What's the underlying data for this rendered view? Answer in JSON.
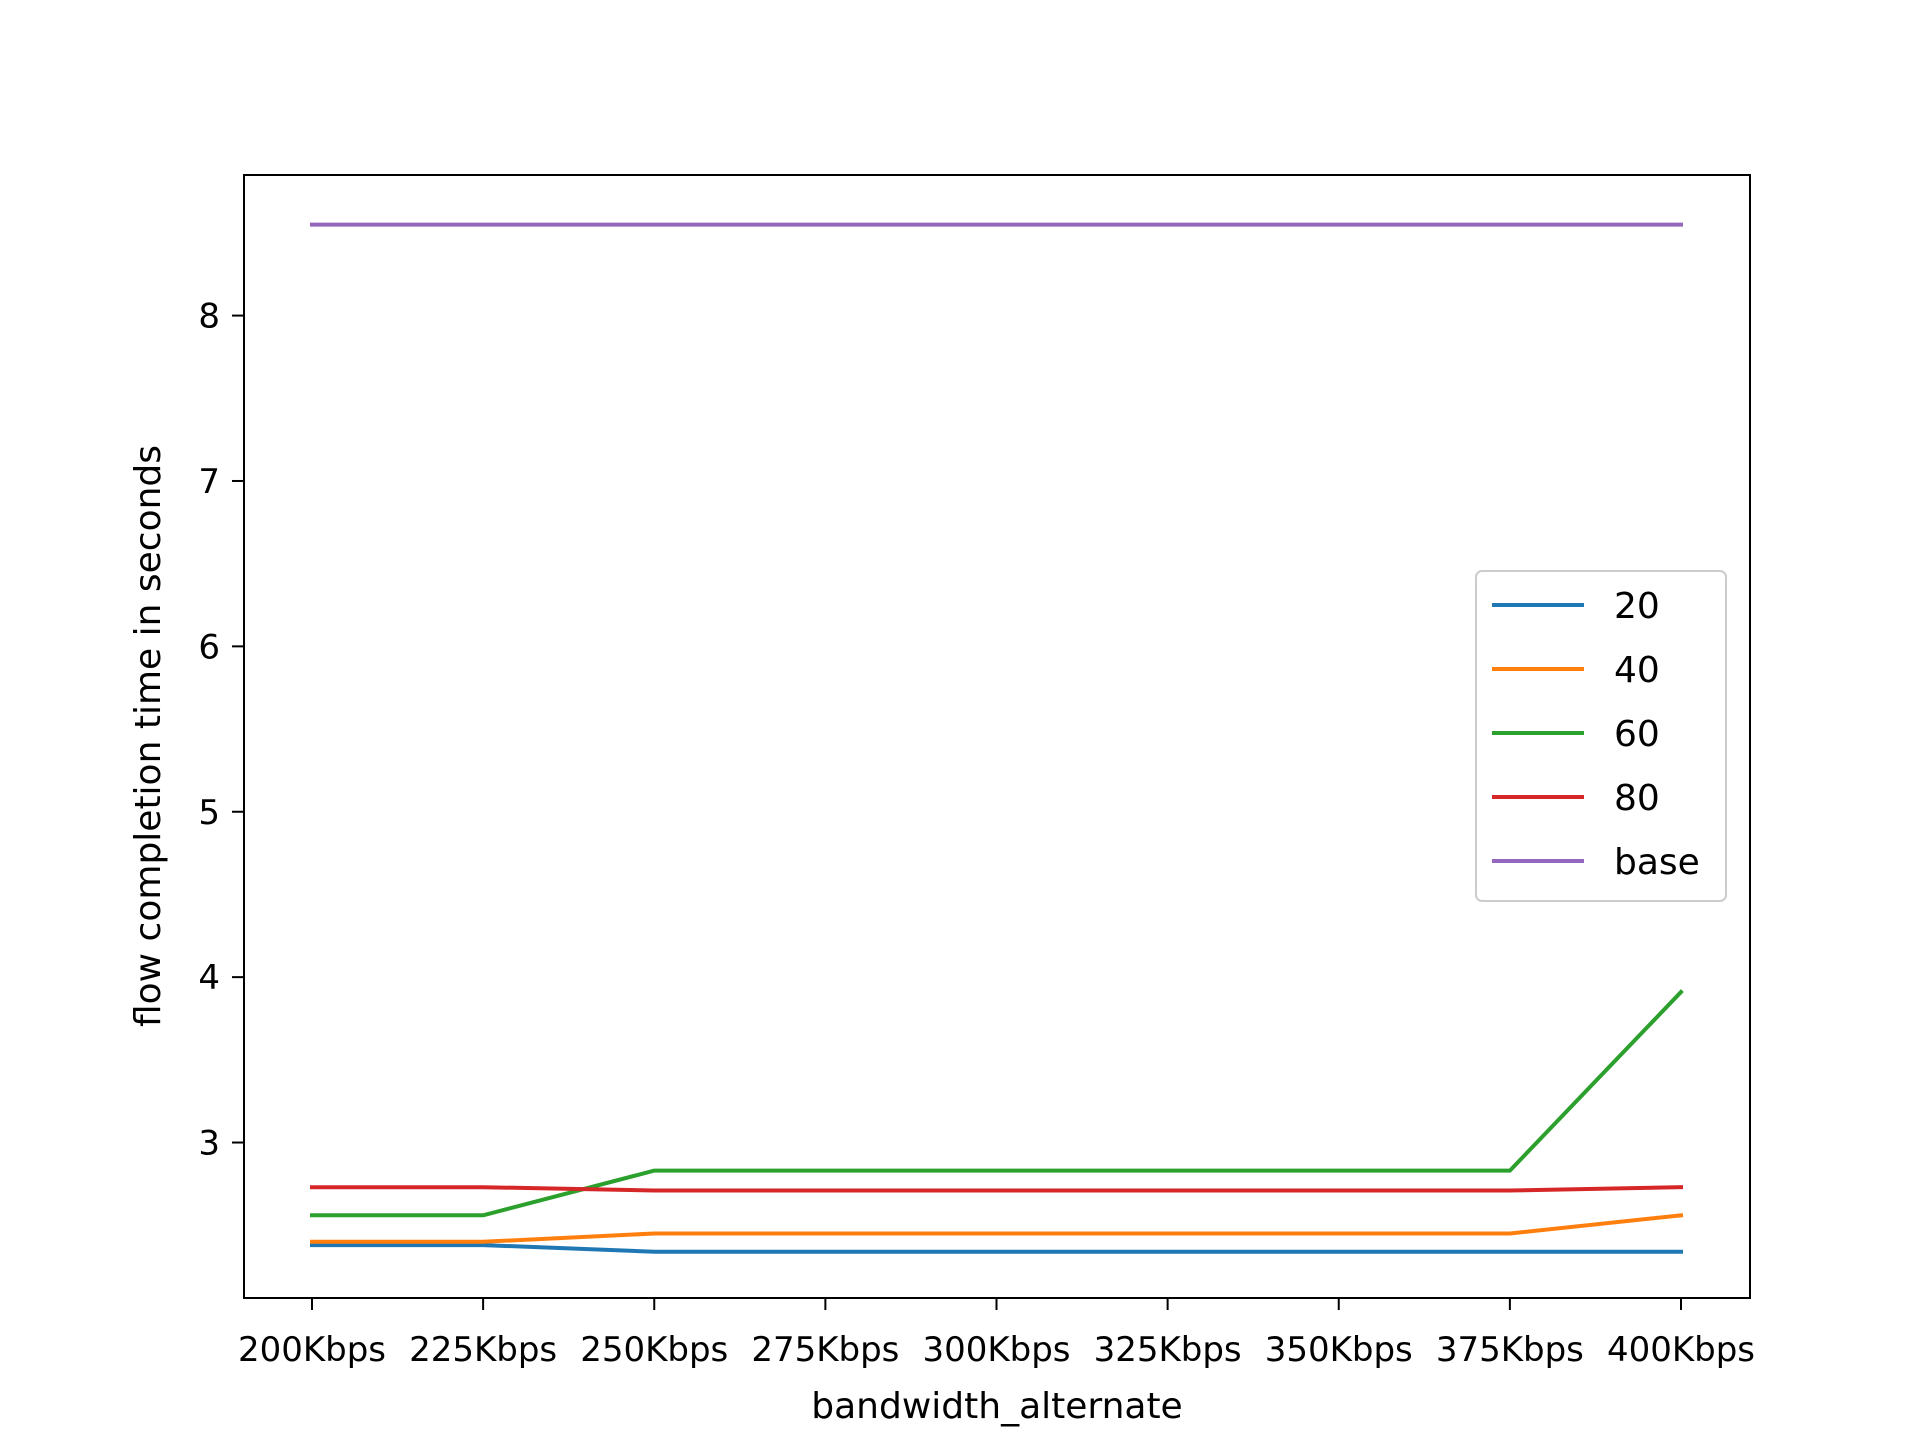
{
  "chart_data": {
    "type": "line",
    "title": "",
    "xlabel": "bandwidth_alternate",
    "ylabel": "flow completion time in seconds",
    "categories": [
      "200Kbps",
      "225Kbps",
      "250Kbps",
      "275Kbps",
      "300Kbps",
      "325Kbps",
      "350Kbps",
      "375Kbps",
      "400Kbps"
    ],
    "ylim": [
      2.06,
      8.85
    ],
    "yticks": [
      3,
      4,
      5,
      6,
      7,
      8
    ],
    "grid": false,
    "legend_position": "center-right",
    "series": [
      {
        "name": "20",
        "color": "#1f77b4",
        "values": [
          2.38,
          2.38,
          2.34,
          2.34,
          2.34,
          2.34,
          2.34,
          2.34,
          2.34
        ]
      },
      {
        "name": "40",
        "color": "#ff7f0e",
        "values": [
          2.4,
          2.4,
          2.45,
          2.45,
          2.45,
          2.45,
          2.45,
          2.45,
          2.56
        ]
      },
      {
        "name": "60",
        "color": "#2ca02c",
        "values": [
          2.56,
          2.56,
          2.83,
          2.83,
          2.83,
          2.83,
          2.83,
          2.83,
          3.91
        ]
      },
      {
        "name": "80",
        "color": "#d62728",
        "values": [
          2.73,
          2.73,
          2.71,
          2.71,
          2.71,
          2.71,
          2.71,
          2.71,
          2.73
        ]
      },
      {
        "name": "base",
        "color": "#9467bd",
        "values": [
          8.55,
          8.55,
          8.55,
          8.55,
          8.55,
          8.55,
          8.55,
          8.55,
          8.55
        ]
      }
    ]
  }
}
